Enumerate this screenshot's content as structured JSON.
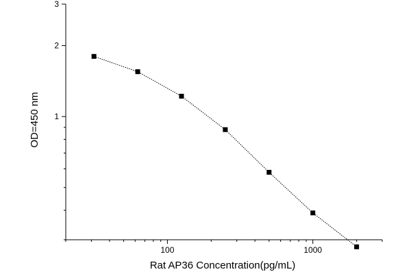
{
  "chart_data": {
    "type": "line",
    "title": "",
    "xlabel": "Rat AP36  Concentration(pg/mL)",
    "ylabel": "OD=450 nm",
    "xscale": "log",
    "yscale": "log",
    "xlim": [
      20,
      3000
    ],
    "ylim": [
      0.3,
      3
    ],
    "xticks": [
      100,
      1000
    ],
    "xtick_labels": [
      "100",
      "1000"
    ],
    "yticks": [
      1,
      2,
      3
    ],
    "ytick_labels": [
      "1",
      "2",
      "3"
    ],
    "grid": false,
    "legend": "none",
    "series": [
      {
        "x": [
          31.25,
          62.5,
          125,
          250,
          500,
          1000,
          2000
        ],
        "y": [
          1.8,
          1.55,
          1.22,
          0.88,
          0.58,
          0.39,
          0.28
        ],
        "marker": "square",
        "line_style": "dotted",
        "color": "#000000"
      }
    ]
  }
}
